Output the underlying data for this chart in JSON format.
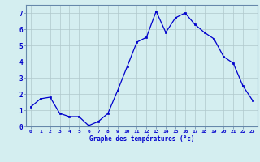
{
  "x": [
    0,
    1,
    2,
    3,
    4,
    5,
    6,
    7,
    8,
    9,
    10,
    11,
    12,
    13,
    14,
    15,
    16,
    17,
    18,
    19,
    20,
    21,
    22,
    23
  ],
  "y": [
    1.2,
    1.7,
    1.8,
    0.8,
    0.6,
    0.6,
    0.05,
    0.3,
    0.8,
    2.2,
    3.7,
    5.2,
    5.5,
    7.1,
    5.8,
    6.7,
    7.0,
    6.3,
    5.8,
    5.4,
    4.3,
    3.9,
    2.5,
    1.6
  ],
  "xlim": [
    -0.5,
    23.5
  ],
  "ylim": [
    0,
    7.5
  ],
  "xticks": [
    0,
    1,
    2,
    3,
    4,
    5,
    6,
    7,
    8,
    9,
    10,
    11,
    12,
    13,
    14,
    15,
    16,
    17,
    18,
    19,
    20,
    21,
    22,
    23
  ],
  "yticks": [
    0,
    1,
    2,
    3,
    4,
    5,
    6,
    7
  ],
  "xlabel": "Graphe des températures (°c)",
  "line_color": "#0000cc",
  "marker_color": "#0000cc",
  "bg_color": "#d4eef0",
  "grid_color": "#b0c8cc",
  "axis_label_color": "#0000cc",
  "tick_label_color": "#0000cc",
  "spine_color": "#6688aa",
  "figsize": [
    3.2,
    2.0
  ],
  "dpi": 100
}
